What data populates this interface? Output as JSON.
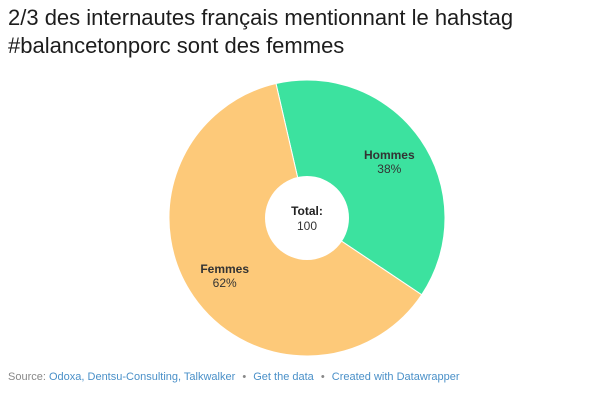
{
  "chart_data": {
    "type": "pie",
    "title": "2/3 des internautes français mentionnant le hahstag #balancetonporc sont des femmes",
    "slices": [
      {
        "name": "Hommes",
        "value": 38,
        "label": "38%",
        "color": "#3ce29f"
      },
      {
        "name": "Femmes",
        "value": 62,
        "label": "62%",
        "color": "#fdc979"
      }
    ],
    "center_label": "Total:",
    "center_value": "100"
  },
  "footer": {
    "source_prefix": "Source:",
    "sources": "Odoxa, Dentsu-Consulting, Talkwalker",
    "separator": "•",
    "get_data": "Get the data",
    "created_with": "Created with Datawrapper"
  }
}
